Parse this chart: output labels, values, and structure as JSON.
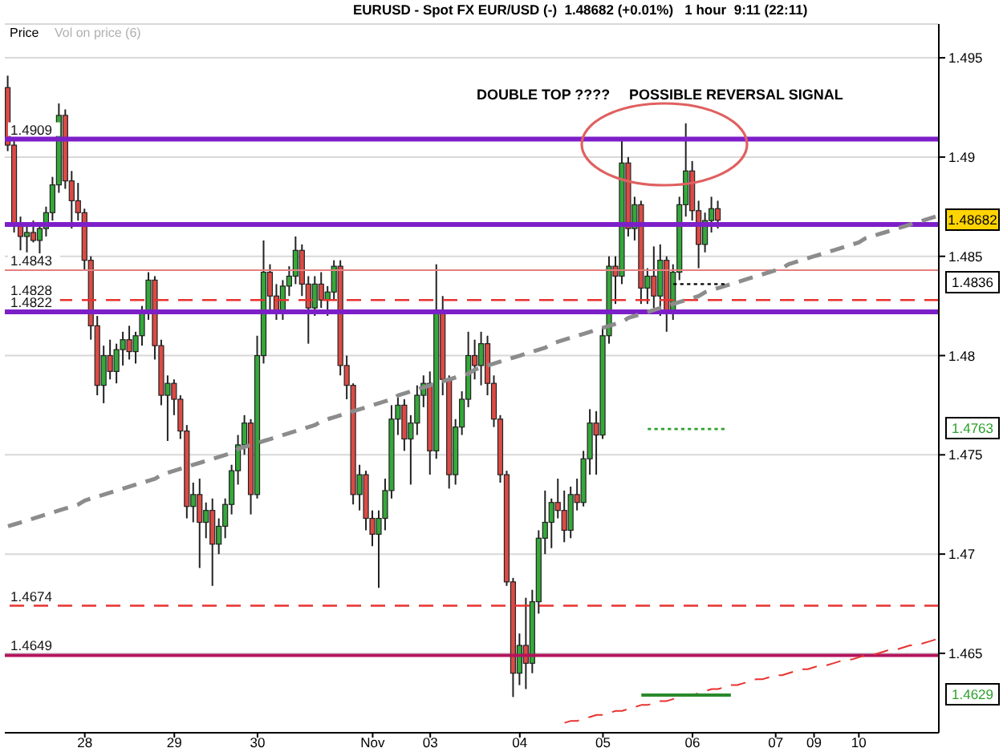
{
  "chart_data": {
    "type": "candlestick",
    "title": "EURUSD - Spot FX EUR/USD (-)  1.48682 (+0.01%)   1 hour  9:11 (22:11)",
    "annotations": [
      "Price",
      "Vol on price (6)",
      "DOUBLE TOP ????",
      "POSSIBLE REVERSAL SIGNAL",
      "1.48682",
      "1.4836",
      "1.4763",
      "1.4629"
    ],
    "categories": [
      null,
      null,
      null,
      null,
      null,
      null,
      null,
      null,
      null,
      null,
      null,
      null,
      "28",
      null,
      null,
      null,
      null,
      null,
      null,
      null,
      null,
      null,
      null,
      null,
      null,
      null,
      "29",
      null,
      null,
      null,
      null,
      null,
      null,
      null,
      null,
      null,
      null,
      null,
      null,
      "30",
      null,
      null,
      null,
      null,
      null,
      null,
      null,
      null,
      null,
      null,
      null,
      null,
      null,
      null,
      null,
      null,
      null,
      "Nov",
      null,
      null,
      null,
      null,
      null,
      null,
      null,
      null,
      "03",
      null,
      null,
      null,
      null,
      null,
      null,
      null,
      null,
      null,
      null,
      null,
      null,
      null,
      "04",
      null,
      null,
      null,
      null,
      null,
      null,
      null,
      null,
      null,
      null,
      null,
      null,
      "05",
      null,
      null,
      null,
      null,
      null,
      null,
      null,
      null,
      null,
      null,
      null,
      null,
      null,
      "06",
      null,
      null,
      null,
      null,
      null,
      null,
      null,
      null,
      null,
      null,
      null,
      null,
      "07",
      null,
      null,
      null,
      null,
      null,
      "09",
      null,
      null,
      null,
      null,
      null,
      null,
      "10",
      null,
      null,
      null,
      null,
      null,
      null,
      null,
      null,
      null,
      null,
      null,
      null
    ],
    "ohlc": [
      [
        1.4935,
        1.4941,
        1.4903,
        1.4906
      ],
      [
        1.4906,
        1.4908,
        1.4862,
        1.4866
      ],
      [
        1.4866,
        1.487,
        1.4853,
        1.486
      ],
      [
        1.486,
        1.4866,
        1.4852,
        1.4862
      ],
      [
        1.4862,
        1.4868,
        1.4857,
        1.4858
      ],
      [
        1.4858,
        1.4866,
        1.485,
        1.4864
      ],
      [
        1.4864,
        1.4875,
        1.486,
        1.4872
      ],
      [
        1.4872,
        1.489,
        1.4868,
        1.4886
      ],
      [
        1.4886,
        1.4927,
        1.4882,
        1.4921
      ],
      [
        1.4921,
        1.4924,
        1.4884,
        1.4888
      ],
      [
        1.4888,
        1.4893,
        1.4864,
        1.4878
      ],
      [
        1.4878,
        1.4887,
        1.4868,
        1.4872
      ],
      [
        1.4872,
        1.4874,
        1.4843,
        1.4848
      ],
      [
        1.4848,
        1.485,
        1.4808,
        1.4815
      ],
      [
        1.4815,
        1.482,
        1.478,
        1.4785
      ],
      [
        1.4785,
        1.4805,
        1.4776,
        1.48
      ],
      [
        1.48,
        1.4808,
        1.4788,
        1.4792
      ],
      [
        1.4792,
        1.4806,
        1.4786,
        1.4803
      ],
      [
        1.4803,
        1.4812,
        1.4795,
        1.4808
      ],
      [
        1.4808,
        1.4815,
        1.4798,
        1.4802
      ],
      [
        1.4802,
        1.4812,
        1.4796,
        1.481
      ],
      [
        1.481,
        1.4825,
        1.4805,
        1.4822
      ],
      [
        1.4822,
        1.4842,
        1.4818,
        1.4838
      ],
      [
        1.4838,
        1.484,
        1.4798,
        1.4805
      ],
      [
        1.4805,
        1.4808,
        1.4775,
        1.478
      ],
      [
        1.478,
        1.479,
        1.4757,
        1.4786
      ],
      [
        1.4786,
        1.4788,
        1.477,
        1.4778
      ],
      [
        1.4778,
        1.478,
        1.4758,
        1.4762
      ],
      [
        1.4762,
        1.4765,
        1.4718,
        1.4724
      ],
      [
        1.4724,
        1.4736,
        1.4716,
        1.473
      ],
      [
        1.473,
        1.4738,
        1.4693,
        1.4716
      ],
      [
        1.4716,
        1.4726,
        1.4708,
        1.4722
      ],
      [
        1.4722,
        1.4728,
        1.4684,
        1.4705
      ],
      [
        1.4705,
        1.4718,
        1.47,
        1.4714
      ],
      [
        1.4714,
        1.4728,
        1.4708,
        1.4725
      ],
      [
        1.4725,
        1.4745,
        1.472,
        1.4742
      ],
      [
        1.4742,
        1.476,
        1.4735,
        1.4755
      ],
      [
        1.4755,
        1.477,
        1.475,
        1.4766
      ],
      [
        1.4766,
        1.4768,
        1.472,
        1.473
      ],
      [
        1.473,
        1.481,
        1.4728,
        1.48
      ],
      [
        1.48,
        1.4858,
        1.4796,
        1.4842
      ],
      [
        1.4842,
        1.4846,
        1.4822,
        1.483
      ],
      [
        1.483,
        1.4836,
        1.4818,
        1.4822
      ],
      [
        1.4822,
        1.4838,
        1.4818,
        1.4835
      ],
      [
        1.4835,
        1.4845,
        1.483,
        1.484
      ],
      [
        1.484,
        1.486,
        1.4836,
        1.4853
      ],
      [
        1.4853,
        1.4856,
        1.483,
        1.4836
      ],
      [
        1.4836,
        1.484,
        1.4806,
        1.4824
      ],
      [
        1.4824,
        1.484,
        1.482,
        1.4836
      ],
      [
        1.4836,
        1.4842,
        1.4824,
        1.4828
      ],
      [
        1.4828,
        1.4835,
        1.482,
        1.4832
      ],
      [
        1.4832,
        1.4848,
        1.4828,
        1.4845
      ],
      [
        1.4845,
        1.4848,
        1.479,
        1.4795
      ],
      [
        1.4795,
        1.48,
        1.4778,
        1.4785
      ],
      [
        1.4785,
        1.4786,
        1.4725,
        1.473
      ],
      [
        1.473,
        1.4745,
        1.4722,
        1.474
      ],
      [
        1.474,
        1.4742,
        1.4712,
        1.4718
      ],
      [
        1.4718,
        1.4722,
        1.4704,
        1.471
      ],
      [
        1.471,
        1.4722,
        1.4683,
        1.4718
      ],
      [
        1.4718,
        1.4738,
        1.4712,
        1.4732
      ],
      [
        1.4732,
        1.4775,
        1.4728,
        1.4768
      ],
      [
        1.4768,
        1.478,
        1.476,
        1.4775
      ],
      [
        1.4775,
        1.4778,
        1.4752,
        1.4758
      ],
      [
        1.4758,
        1.477,
        1.4735,
        1.4766
      ],
      [
        1.4766,
        1.4785,
        1.476,
        1.478
      ],
      [
        1.478,
        1.479,
        1.4774,
        1.4786
      ],
      [
        1.4786,
        1.4792,
        1.474,
        1.4752
      ],
      [
        1.4752,
        1.4846,
        1.4748,
        1.4823
      ],
      [
        1.4823,
        1.483,
        1.478,
        1.4788
      ],
      [
        1.4788,
        1.479,
        1.4733,
        1.474
      ],
      [
        1.474,
        1.4768,
        1.4735,
        1.4764
      ],
      [
        1.4764,
        1.4782,
        1.476,
        1.4778
      ],
      [
        1.4778,
        1.4812,
        1.4774,
        1.48
      ],
      [
        1.48,
        1.4808,
        1.4788,
        1.4795
      ],
      [
        1.4795,
        1.4812,
        1.4785,
        1.4806
      ],
      [
        1.4806,
        1.481,
        1.478,
        1.4786
      ],
      [
        1.4786,
        1.479,
        1.4764,
        1.4768
      ],
      [
        1.4768,
        1.477,
        1.4736,
        1.474
      ],
      [
        1.474,
        1.4742,
        1.4684,
        1.4686
      ],
      [
        1.4686,
        1.4688,
        1.4628,
        1.464
      ],
      [
        1.464,
        1.466,
        1.4634,
        1.4654
      ],
      [
        1.4654,
        1.4678,
        1.4632,
        1.4645
      ],
      [
        1.4645,
        1.4682,
        1.464,
        1.4676
      ],
      [
        1.4676,
        1.4712,
        1.467,
        1.4708
      ],
      [
        1.4708,
        1.4732,
        1.47,
        1.4716
      ],
      [
        1.4716,
        1.4728,
        1.4703,
        1.4726
      ],
      [
        1.4726,
        1.4738,
        1.4718,
        1.4722
      ],
      [
        1.4722,
        1.4732,
        1.4706,
        1.4712
      ],
      [
        1.4712,
        1.4734,
        1.4708,
        1.473
      ],
      [
        1.473,
        1.4738,
        1.4722,
        1.4726
      ],
      [
        1.4726,
        1.4752,
        1.4724,
        1.4748
      ],
      [
        1.4748,
        1.4773,
        1.474,
        1.4766
      ],
      [
        1.4766,
        1.4772,
        1.474,
        1.476
      ],
      [
        1.476,
        1.4814,
        1.4758,
        1.481
      ],
      [
        1.481,
        1.485,
        1.4806,
        1.4845
      ],
      [
        1.4845,
        1.485,
        1.4826,
        1.484
      ],
      [
        1.484,
        1.4909,
        1.4836,
        1.4897
      ],
      [
        1.4897,
        1.49,
        1.486,
        1.4864
      ],
      [
        1.4864,
        1.488,
        1.4858,
        1.4876
      ],
      [
        1.4876,
        1.4878,
        1.4826,
        1.4834
      ],
      [
        1.4834,
        1.4844,
        1.4826,
        1.484
      ],
      [
        1.484,
        1.4855,
        1.4824,
        1.483
      ],
      [
        1.483,
        1.4856,
        1.482,
        1.4848
      ],
      [
        1.4848,
        1.485,
        1.4812,
        1.4822
      ],
      [
        1.4822,
        1.4846,
        1.4818,
        1.4842
      ],
      [
        1.4842,
        1.488,
        1.4838,
        1.4876
      ],
      [
        1.4876,
        1.4917,
        1.487,
        1.4893
      ],
      [
        1.4893,
        1.4898,
        1.4868,
        1.4873
      ],
      [
        1.4873,
        1.4878,
        1.4844,
        1.4856
      ],
      [
        1.4856,
        1.4872,
        1.4852,
        1.4868
      ],
      [
        1.4868,
        1.488,
        1.4862,
        1.4874
      ],
      [
        1.4874,
        1.4878,
        1.4864,
        1.48682
      ],
      null,
      null,
      null,
      null,
      null,
      null,
      null,
      null,
      null,
      null,
      null,
      null,
      null,
      null,
      null,
      null,
      null,
      null,
      null,
      null,
      null,
      null,
      null,
      null,
      null,
      null,
      null,
      null,
      null,
      null,
      null,
      null,
      null,
      null
    ],
    "series": [
      {
        "type": "line",
        "color": "#8c8c8c",
        "line_style": "dashed",
        "values": [
          1.4714,
          1.4715,
          1.4716,
          1.4717,
          1.4718,
          1.4719,
          1.472,
          1.4721,
          1.4722,
          1.4723,
          1.4724,
          1.4725,
          1.4727,
          1.4728,
          1.4729,
          1.473,
          1.4731,
          1.4732,
          1.4733,
          1.4734,
          1.4735,
          1.4736,
          1.4737,
          1.4738,
          1.474,
          1.4741,
          1.4742,
          1.4743,
          1.4744,
          1.4745,
          1.4746,
          1.4747,
          1.4748,
          1.4749,
          1.475,
          1.4751,
          1.4753,
          1.4754,
          1.4755,
          1.4756,
          1.4757,
          1.4758,
          1.4759,
          1.476,
          1.4761,
          1.4762,
          1.4763,
          1.4764,
          1.4765,
          1.4767,
          1.4768,
          1.4769,
          1.477,
          1.4771,
          1.4772,
          1.4773,
          1.4774,
          1.4775,
          1.4776,
          1.4777,
          1.4778,
          1.478,
          1.4781,
          1.4782,
          1.4783,
          1.4784,
          1.4785,
          1.4786,
          1.4787,
          1.4788,
          1.4789,
          1.479,
          1.4791,
          1.4793,
          1.4794,
          1.4795,
          1.4796,
          1.4797,
          1.4798,
          1.4799,
          1.48,
          1.4801,
          1.4802,
          1.4803,
          1.4804,
          1.4806,
          1.4807,
          1.4808,
          1.4809,
          1.481,
          1.4811,
          1.4812,
          1.4813,
          1.4814,
          1.4815,
          1.4816,
          1.4817,
          1.4819,
          1.482,
          1.4821,
          1.4822,
          1.4823,
          1.4824,
          1.4825,
          1.4826,
          1.4827,
          1.4828,
          1.4829,
          1.483,
          1.4832,
          1.4833,
          1.4834,
          1.4835,
          1.4836,
          1.4837,
          1.4838,
          1.4839,
          1.484,
          1.4841,
          1.4842,
          1.4843,
          1.4844,
          1.4846,
          1.4847,
          1.4848,
          1.4849,
          1.485,
          1.4851,
          1.4852,
          1.4853,
          1.4854,
          1.4855,
          1.4856,
          1.4857,
          1.4859,
          1.486,
          1.4861,
          1.4862,
          1.4863,
          1.4864,
          1.4865,
          1.4866,
          1.4867,
          1.4868,
          1.4869,
          1.487
        ]
      },
      {
        "type": "line",
        "color": "#e8322f",
        "line_style": "dashed",
        "values": [
          null,
          null,
          null,
          null,
          null,
          null,
          null,
          null,
          null,
          null,
          null,
          null,
          null,
          null,
          null,
          null,
          null,
          null,
          null,
          null,
          null,
          null,
          null,
          null,
          null,
          null,
          null,
          null,
          null,
          null,
          null,
          null,
          null,
          null,
          null,
          null,
          null,
          null,
          null,
          null,
          null,
          null,
          null,
          null,
          null,
          null,
          null,
          null,
          null,
          null,
          null,
          null,
          null,
          null,
          null,
          null,
          null,
          null,
          null,
          null,
          null,
          null,
          null,
          null,
          null,
          null,
          null,
          null,
          null,
          null,
          null,
          null,
          null,
          null,
          null,
          null,
          null,
          null,
          null,
          null,
          null,
          null,
          null,
          null,
          null,
          null,
          null,
          1.4615,
          1.4616,
          1.4616,
          1.4617,
          1.4618,
          1.4619,
          1.4619,
          1.462,
          1.4621,
          1.4621,
          1.4622,
          1.4623,
          1.4624,
          1.4624,
          1.4625,
          1.4626,
          1.4626,
          1.4627,
          1.4628,
          1.4629,
          1.4629,
          1.463,
          1.4631,
          1.4632,
          1.4632,
          1.4633,
          1.4634,
          1.4634,
          1.4635,
          1.4636,
          1.4637,
          1.4637,
          1.4638,
          1.4639,
          1.4639,
          1.464,
          1.4641,
          1.4642,
          1.4642,
          1.4643,
          1.4644,
          1.4644,
          1.4645,
          1.4646,
          1.4647,
          1.4647,
          1.4648,
          1.4649,
          1.4649,
          1.465,
          1.4651,
          1.4652,
          1.4652,
          1.4653,
          1.4654,
          1.4654,
          1.4655,
          1.4656,
          1.4657
        ]
      },
      {
        "type": "line",
        "color": "#000000",
        "line_style": "dotted",
        "values": [
          null,
          null,
          null,
          null,
          null,
          null,
          null,
          null,
          null,
          null,
          null,
          null,
          null,
          null,
          null,
          null,
          null,
          null,
          null,
          null,
          null,
          null,
          null,
          null,
          null,
          null,
          null,
          null,
          null,
          null,
          null,
          null,
          null,
          null,
          null,
          null,
          null,
          null,
          null,
          null,
          null,
          null,
          null,
          null,
          null,
          null,
          null,
          null,
          null,
          null,
          null,
          null,
          null,
          null,
          null,
          null,
          null,
          null,
          null,
          null,
          null,
          null,
          null,
          null,
          null,
          null,
          null,
          null,
          null,
          null,
          null,
          null,
          null,
          null,
          null,
          null,
          null,
          null,
          null,
          null,
          null,
          null,
          null,
          null,
          null,
          null,
          null,
          null,
          null,
          null,
          null,
          null,
          null,
          null,
          null,
          null,
          null,
          null,
          null,
          null,
          null,
          null,
          null,
          null,
          1.4836,
          1.4836,
          1.4836,
          1.4836,
          1.4836,
          1.4836,
          1.4836,
          1.4836,
          1.4836,
          null,
          null,
          null,
          null,
          null,
          null,
          null,
          null,
          null,
          null,
          null,
          null,
          null,
          null,
          null,
          null,
          null,
          null,
          null,
          null,
          null,
          null,
          null,
          null,
          null,
          null,
          null,
          null,
          null,
          null,
          null,
          null,
          null
        ]
      },
      {
        "type": "line",
        "color": "#2ca02c",
        "line_style": "dotted",
        "values": [
          null,
          null,
          null,
          null,
          null,
          null,
          null,
          null,
          null,
          null,
          null,
          null,
          null,
          null,
          null,
          null,
          null,
          null,
          null,
          null,
          null,
          null,
          null,
          null,
          null,
          null,
          null,
          null,
          null,
          null,
          null,
          null,
          null,
          null,
          null,
          null,
          null,
          null,
          null,
          null,
          null,
          null,
          null,
          null,
          null,
          null,
          null,
          null,
          null,
          null,
          null,
          null,
          null,
          null,
          null,
          null,
          null,
          null,
          null,
          null,
          null,
          null,
          null,
          null,
          null,
          null,
          null,
          null,
          null,
          null,
          null,
          null,
          null,
          null,
          null,
          null,
          null,
          null,
          null,
          null,
          null,
          null,
          null,
          null,
          null,
          null,
          null,
          null,
          null,
          null,
          null,
          null,
          null,
          null,
          null,
          null,
          null,
          null,
          null,
          null,
          1.4763,
          1.4763,
          1.4763,
          1.4763,
          1.4763,
          1.4763,
          1.4763,
          1.4763,
          1.4763,
          1.4763,
          1.4763,
          1.4763,
          1.4763,
          null,
          null,
          null,
          null,
          null,
          null,
          null,
          null,
          null,
          null,
          null,
          null,
          null,
          null,
          null,
          null,
          null,
          null,
          null,
          null,
          null,
          null,
          null,
          null,
          null,
          null,
          null,
          null,
          null,
          null,
          null,
          null,
          null
        ]
      },
      {
        "type": "line",
        "color": "#2a8a2a",
        "values": [
          null,
          null,
          null,
          null,
          null,
          null,
          null,
          null,
          null,
          null,
          null,
          null,
          null,
          null,
          null,
          null,
          null,
          null,
          null,
          null,
          null,
          null,
          null,
          null,
          null,
          null,
          null,
          null,
          null,
          null,
          null,
          null,
          null,
          null,
          null,
          null,
          null,
          null,
          null,
          null,
          null,
          null,
          null,
          null,
          null,
          null,
          null,
          null,
          null,
          null,
          null,
          null,
          null,
          null,
          null,
          null,
          null,
          null,
          null,
          null,
          null,
          null,
          null,
          null,
          null,
          null,
          null,
          null,
          null,
          null,
          null,
          null,
          null,
          null,
          null,
          null,
          null,
          null,
          null,
          null,
          null,
          null,
          null,
          null,
          null,
          null,
          null,
          null,
          null,
          null,
          null,
          null,
          null,
          null,
          null,
          null,
          null,
          null,
          null,
          1.4629,
          1.4629,
          1.4629,
          1.4629,
          1.4629,
          1.4629,
          1.4629,
          1.4629,
          1.4629,
          1.4629,
          1.4629,
          1.4629,
          1.4629,
          1.4629,
          1.4629,
          null,
          null,
          null,
          null,
          null,
          null,
          null,
          null,
          null,
          null,
          null,
          null,
          null,
          null,
          null,
          null,
          null,
          null,
          null,
          null,
          null,
          null,
          null,
          null,
          null,
          null,
          null,
          null,
          null,
          null,
          null,
          null
        ]
      }
    ],
    "ref_lines": [
      {
        "axis": "y",
        "value": 1.4909,
        "label": "1.4909",
        "color": "#7d1fc9"
      },
      {
        "axis": "y",
        "value": 1.4866,
        "color": "#7d1fc9"
      },
      {
        "axis": "y",
        "value": 1.4843,
        "label": "1.4843",
        "color": "#e58080"
      },
      {
        "axis": "y",
        "value": 1.4828,
        "label": "1.4828",
        "color": "#e8322f",
        "line_style": "dashed"
      },
      {
        "axis": "y",
        "value": 1.4822,
        "label": "1.4822",
        "color": "#7d1fc9"
      },
      {
        "axis": "y",
        "value": 1.4674,
        "label": "1.4674",
        "color": "#e8322f",
        "line_style": "dashed"
      },
      {
        "axis": "y",
        "value": 1.4649,
        "label": "1.4649",
        "color": "#b3145c"
      }
    ],
    "ylim": [
      1.461,
      1.4967
    ],
    "yticks": [
      1.465,
      1.47,
      1.475,
      1.48,
      1.485,
      1.49,
      1.495
    ],
    "grid": "y"
  }
}
